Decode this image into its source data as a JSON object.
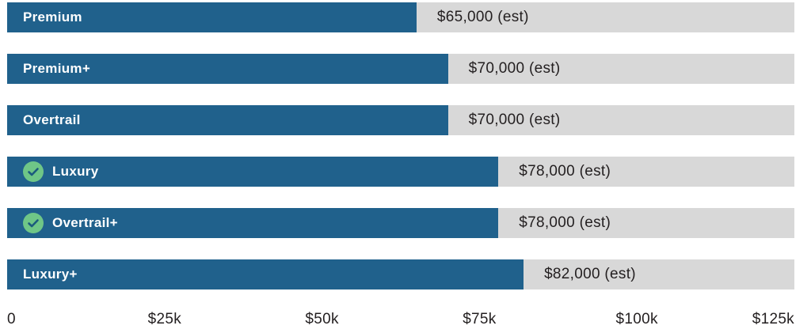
{
  "chart_data": {
    "type": "bar",
    "orientation": "horizontal",
    "title": "",
    "xlabel": "",
    "ylabel": "",
    "xlim": [
      0,
      125000
    ],
    "grid": false,
    "categories": [
      "Premium",
      "Premium+",
      "Overtrail",
      "Luxury",
      "Overtrail+",
      "Luxury+"
    ],
    "values": [
      65000,
      70000,
      70000,
      78000,
      78000,
      82000
    ],
    "value_labels": [
      "$65,000 (est)",
      "$70,000 (est)",
      "$70,000 (est)",
      "$78,000 (est)",
      "$78,000 (est)",
      "$82,000 (est)"
    ],
    "checked": [
      false,
      false,
      false,
      true,
      true,
      false
    ],
    "x_ticks": [
      {
        "value": 0,
        "label": "0"
      },
      {
        "value": 25000,
        "label": "$25k"
      },
      {
        "value": 50000,
        "label": "$50k"
      },
      {
        "value": 75000,
        "label": "$75k"
      },
      {
        "value": 100000,
        "label": "$100k"
      },
      {
        "value": 125000,
        "label": "$125k"
      }
    ],
    "colors": {
      "bar_blue": "#20618c",
      "track_gray": "#d8d8d8",
      "label_white": "#ffffff",
      "value_text": "#231f20",
      "check_green": "#6fc687",
      "check_mark_blue": "#1c5b7d"
    }
  }
}
